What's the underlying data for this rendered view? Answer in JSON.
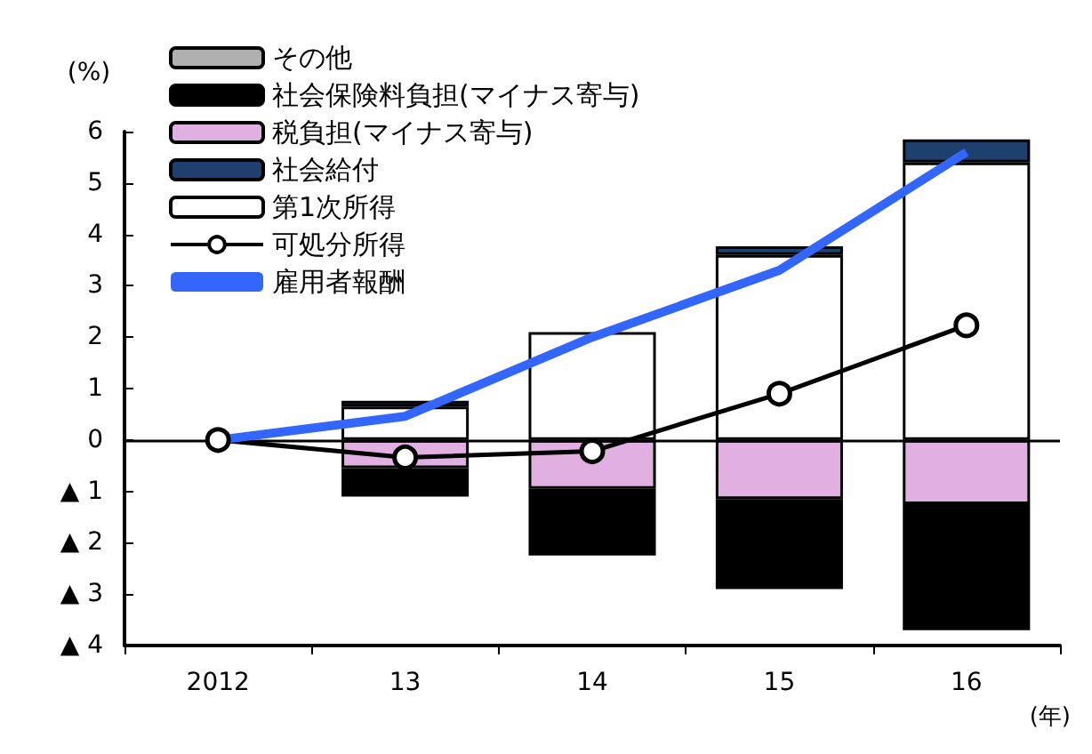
{
  "chart_data": {
    "type": "bar",
    "stacked": true,
    "ylabel": "(%)",
    "xlabel": "(年)",
    "categories": [
      "2012",
      "13",
      "14",
      "15",
      "16"
    ],
    "series": [
      {
        "name": "第1次所得",
        "color": "#ffffff",
        "values": [
          null,
          0.65,
          2.1,
          3.6,
          5.4
        ]
      },
      {
        "name": "社会給付",
        "color": "#1f3f6f",
        "values": [
          null,
          0.11,
          null,
          0.17,
          0.45
        ]
      },
      {
        "name": "税負担(マイナス寄与)",
        "color": "#e0b0e0",
        "values": [
          null,
          -0.55,
          -0.95,
          -1.15,
          -1.25
        ]
      },
      {
        "name": "社会保険料負担(マイナス寄与)",
        "color": "#000000",
        "values": [
          null,
          -0.55,
          -1.2,
          -1.75,
          -2.45
        ]
      },
      {
        "name": "その他",
        "color": "#b0b0b0",
        "values": [
          null,
          null,
          -0.1,
          null,
          null
        ]
      },
      {
        "name": "可処分所得",
        "type": "line",
        "color": "#000000",
        "marker": "circle",
        "values": [
          0,
          -0.34,
          -0.22,
          0.9,
          2.23
        ]
      },
      {
        "name": "雇用者報酬",
        "type": "line",
        "color": "#3366ff",
        "marker": "none",
        "values": [
          0,
          0.46,
          2.0,
          3.3,
          5.6
        ]
      }
    ],
    "ylim": [
      -4,
      6
    ],
    "yticks": [
      {
        "value": -4,
        "label": "▲ 4"
      },
      {
        "value": -3,
        "label": "▲ 3"
      },
      {
        "value": -2,
        "label": "▲ 2"
      },
      {
        "value": -1,
        "label": "▲ 1"
      },
      0,
      1,
      2,
      3,
      4,
      5,
      6
    ],
    "ref_lines": [
      {
        "axis": "y",
        "value": 0,
        "color": "#000000"
      }
    ],
    "grid": false,
    "legend": "top left"
  }
}
